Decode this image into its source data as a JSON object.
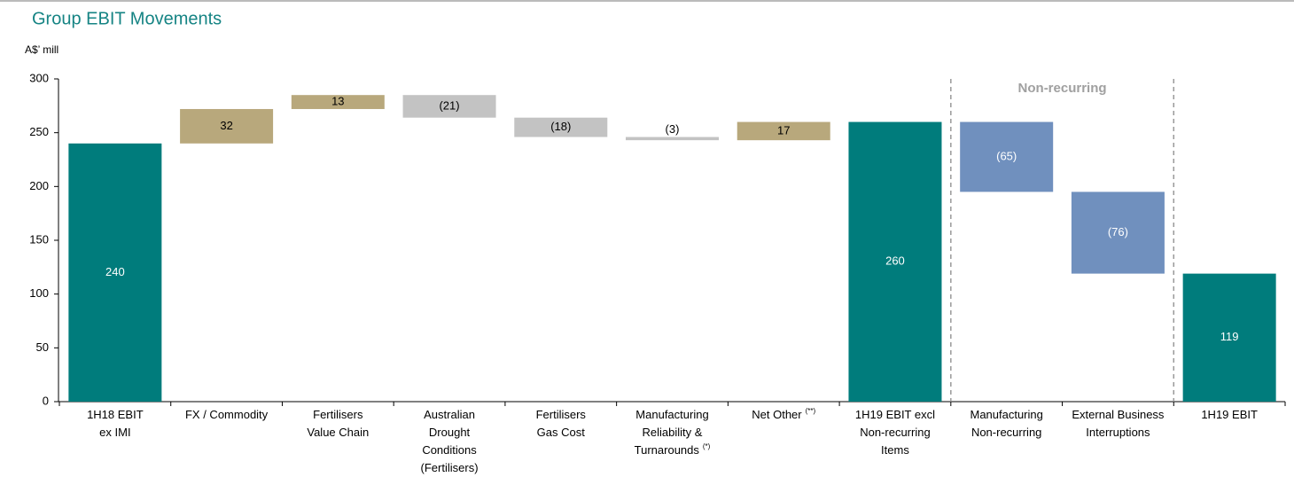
{
  "chart_data": {
    "type": "waterfall",
    "title": "Group EBIT Movements",
    "y_label": "A$’ mill",
    "annotation": "Non-recurring",
    "categories": [
      {
        "lines": [
          "1H18 EBIT",
          "ex IMI"
        ]
      },
      {
        "lines": [
          "FX / Commodity"
        ]
      },
      {
        "lines": [
          "Fertilisers",
          "Value Chain"
        ]
      },
      {
        "lines": [
          "Australian",
          "Drought",
          "Conditions",
          "(Fertilisers)"
        ]
      },
      {
        "lines": [
          "Fertilisers",
          "Gas Cost"
        ]
      },
      {
        "lines": [
          "Manufacturing",
          "Reliability &",
          "Turnarounds"
        ],
        "note": "(*)"
      },
      {
        "lines": [
          "Net Other"
        ],
        "note": "(**)"
      },
      {
        "lines": [
          "1H19 EBIT excl",
          "Non-recurring",
          "Items"
        ]
      },
      {
        "lines": [
          "Manufacturing",
          "Non-recurring"
        ]
      },
      {
        "lines": [
          "External Business",
          "Interruptions"
        ]
      },
      {
        "lines": [
          "1H19 EBIT"
        ]
      }
    ],
    "values": [
      240,
      32,
      13,
      -21,
      -18,
      -3,
      17,
      260,
      -65,
      -76,
      119
    ],
    "value_labels": [
      "240",
      "32",
      "13",
      "(21)",
      "(18)",
      "(3)",
      "17",
      "260",
      "(65)",
      "(76)",
      "119"
    ],
    "kinds": [
      "total",
      "delta",
      "delta",
      "delta",
      "delta",
      "delta",
      "delta",
      "total",
      "delta",
      "delta",
      "total"
    ],
    "colors": [
      "#007c7c",
      "#b8a87c",
      "#b8a87c",
      "#c3c3c3",
      "#c3c3c3",
      "#c3c3c3",
      "#b8a87c",
      "#007c7c",
      "#7090be",
      "#7090be",
      "#007c7c"
    ],
    "ylim": [
      0,
      300
    ],
    "yticks": [
      0,
      50,
      100,
      150,
      200,
      250,
      300
    ]
  }
}
